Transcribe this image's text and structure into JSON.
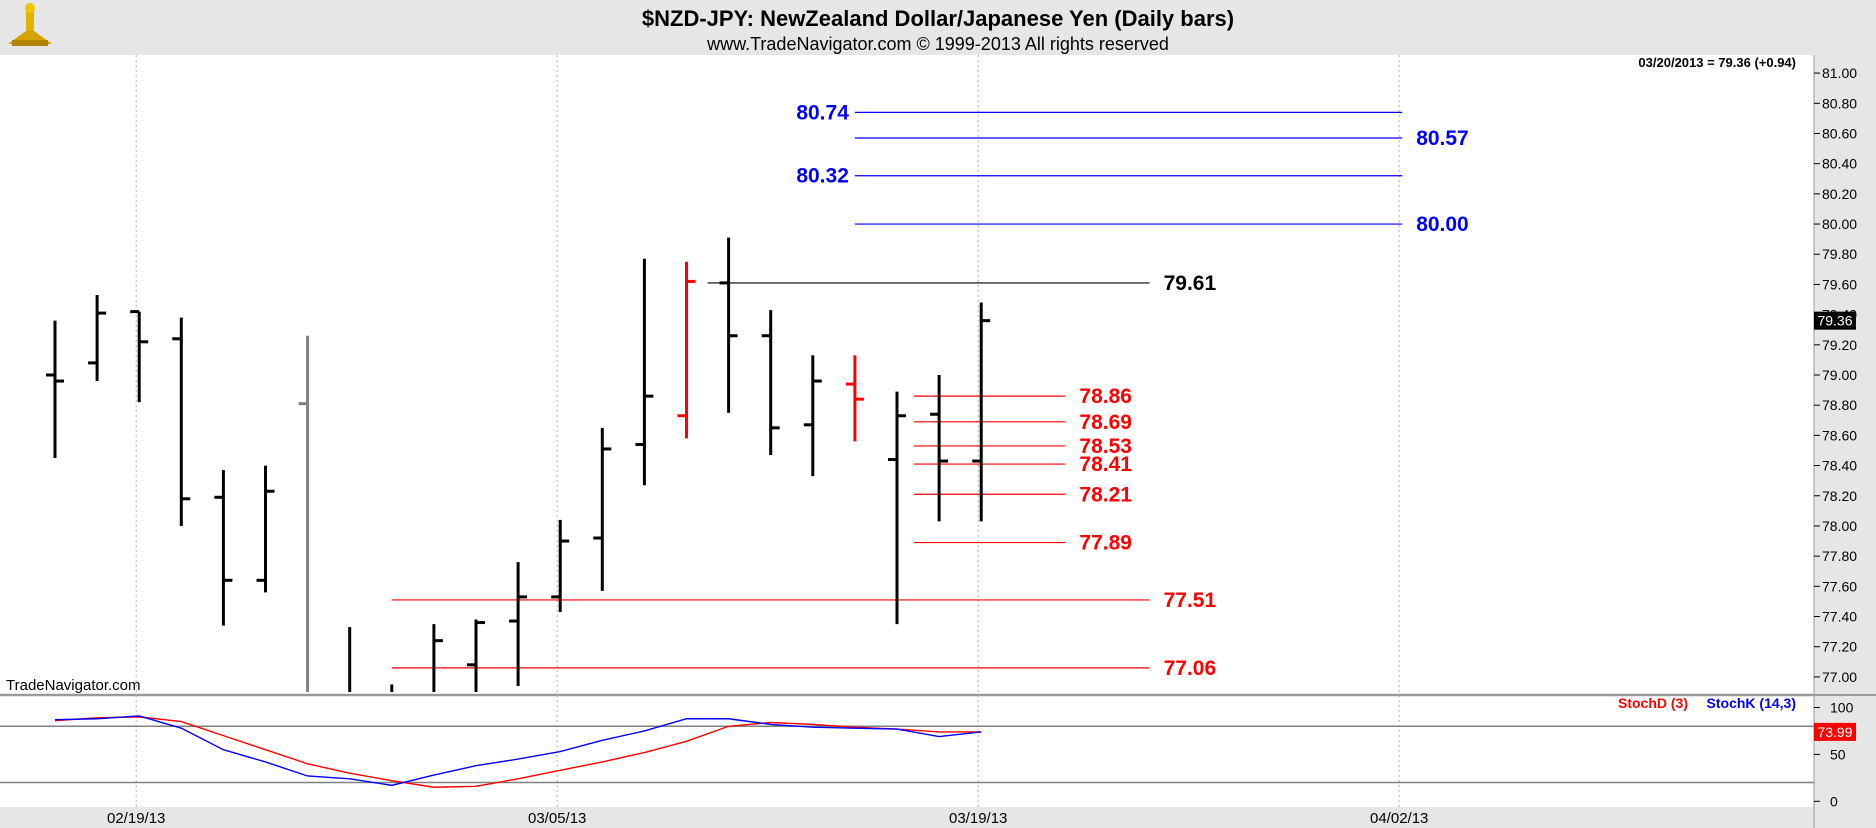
{
  "header": {
    "title": "$NZD-JPY:  NewZealand Dollar/Japanese Yen  (Daily bars)",
    "subtitle": "www.TradeNavigator.com © 1999-2013 All rights reserved",
    "last_readout": "03/20/2013 = 79.36 (+0.94)",
    "watermark": "TradeNavigator.com"
  },
  "colors": {
    "bar": "#000000",
    "bar_red": "#ff0000",
    "bar_gray": "#808080",
    "blue_level": "#0000ff",
    "red_level": "#ff0000",
    "black_level": "#000000",
    "stoch_d": "#ff0000",
    "stoch_k": "#0000ff"
  },
  "chart_data": [
    {
      "type": "ohlc",
      "ylim": [
        76.9,
        81.1
      ],
      "y_ticks": [
        "81.00",
        "80.80",
        "80.60",
        "80.40",
        "80.20",
        "80.00",
        "79.80",
        "79.60",
        "79.40",
        "79.20",
        "79.00",
        "78.80",
        "78.60",
        "78.40",
        "78.20",
        "78.00",
        "77.80",
        "77.60",
        "77.40",
        "77.20",
        "77.00"
      ],
      "y_tick_values": [
        81.0,
        80.8,
        80.6,
        80.4,
        80.2,
        80.0,
        79.8,
        79.6,
        79.4,
        79.2,
        79.0,
        78.8,
        78.6,
        78.4,
        78.2,
        78.0,
        77.8,
        77.6,
        77.4,
        77.2,
        77.0
      ],
      "x_labels": [
        "02/19/13",
        "03/05/13",
        "03/19/13",
        "04/02/13"
      ],
      "x_label_bar_index": [
        2,
        12,
        22,
        32
      ],
      "last_value_label": "79.36",
      "last_value": 79.36,
      "bars": [
        {
          "o": 79.0,
          "h": 79.36,
          "l": 78.45,
          "c": 78.96,
          "color": "bar"
        },
        {
          "o": 79.08,
          "h": 79.53,
          "l": 78.96,
          "c": 79.41,
          "color": "bar"
        },
        {
          "o": 79.42,
          "h": 79.42,
          "l": 78.82,
          "c": 79.22,
          "color": "bar"
        },
        {
          "o": 79.24,
          "h": 79.38,
          "l": 78.0,
          "c": 78.18,
          "color": "bar"
        },
        {
          "o": 78.19,
          "h": 78.37,
          "l": 77.34,
          "c": 77.64,
          "color": "bar"
        },
        {
          "o": 77.64,
          "h": 78.4,
          "l": 77.56,
          "c": 78.23,
          "color": "bar"
        },
        {
          "o": 78.81,
          "h": 79.26,
          "l": 76.9,
          "c": 76.9,
          "color": "bar_gray"
        },
        {
          "o": 76.9,
          "h": 77.33,
          "l": 76.9,
          "c": 76.9,
          "color": "bar"
        },
        {
          "o": 76.9,
          "h": 76.95,
          "l": 76.9,
          "c": 76.9,
          "color": "bar"
        },
        {
          "o": 76.9,
          "h": 77.35,
          "l": 76.9,
          "c": 77.24,
          "color": "bar"
        },
        {
          "o": 77.08,
          "h": 77.38,
          "l": 76.9,
          "c": 77.36,
          "color": "bar"
        },
        {
          "o": 77.37,
          "h": 77.76,
          "l": 76.94,
          "c": 77.53,
          "color": "bar"
        },
        {
          "o": 77.53,
          "h": 78.04,
          "l": 77.43,
          "c": 77.9,
          "color": "bar"
        },
        {
          "o": 77.92,
          "h": 78.65,
          "l": 77.57,
          "c": 78.51,
          "color": "bar"
        },
        {
          "o": 78.54,
          "h": 79.77,
          "l": 78.27,
          "c": 78.86,
          "color": "bar"
        },
        {
          "o": 78.73,
          "h": 79.75,
          "l": 78.58,
          "c": 79.62,
          "color": "bar_red"
        },
        {
          "o": 79.61,
          "h": 79.91,
          "l": 78.75,
          "c": 79.26,
          "color": "bar"
        },
        {
          "o": 79.26,
          "h": 79.43,
          "l": 78.47,
          "c": 78.65,
          "color": "bar"
        },
        {
          "o": 78.67,
          "h": 79.13,
          "l": 78.33,
          "c": 78.96,
          "color": "bar"
        },
        {
          "o": 78.94,
          "h": 79.13,
          "l": 78.56,
          "c": 78.84,
          "color": "bar_red"
        },
        {
          "o": 78.44,
          "h": 78.89,
          "l": 77.35,
          "c": 78.73,
          "color": "bar"
        },
        {
          "o": 78.74,
          "h": 79.0,
          "l": 78.03,
          "c": 78.43,
          "color": "bar"
        },
        {
          "o": 78.43,
          "h": 79.48,
          "l": 78.03,
          "c": 79.36,
          "color": "bar"
        }
      ],
      "levels": [
        {
          "value": 80.74,
          "label": "80.74",
          "color": "blue_level",
          "x0": 19,
          "x1": 32,
          "label_side": "left"
        },
        {
          "value": 80.57,
          "label": "80.57",
          "color": "blue_level",
          "x0": 19,
          "x1": 32,
          "label_side": "right"
        },
        {
          "value": 80.32,
          "label": "80.32",
          "color": "blue_level",
          "x0": 19,
          "x1": 32,
          "label_side": "left"
        },
        {
          "value": 80.0,
          "label": "80.00",
          "color": "blue_level",
          "x0": 19,
          "x1": 32,
          "label_side": "right"
        },
        {
          "value": 79.61,
          "label": "79.61",
          "color": "black_level",
          "x0": 15.5,
          "x1": 26,
          "label_side": "right"
        },
        {
          "value": 78.86,
          "label": "78.86",
          "color": "red_level",
          "x0": 20.4,
          "x1": 24,
          "label_side": "right"
        },
        {
          "value": 78.69,
          "label": "78.69",
          "color": "red_level",
          "x0": 20.4,
          "x1": 24,
          "label_side": "right"
        },
        {
          "value": 78.53,
          "label": "78.53",
          "color": "red_level",
          "x0": 20.4,
          "x1": 24,
          "label_side": "right"
        },
        {
          "value": 78.41,
          "label": "78.41",
          "color": "red_level",
          "x0": 20.4,
          "x1": 24,
          "label_side": "right"
        },
        {
          "value": 78.21,
          "label": "78.21",
          "color": "red_level",
          "x0": 20.4,
          "x1": 24,
          "label_side": "right"
        },
        {
          "value": 77.89,
          "label": "77.89",
          "color": "red_level",
          "x0": 20.4,
          "x1": 24,
          "label_side": "right"
        },
        {
          "value": 77.51,
          "label": "77.51",
          "color": "red_level",
          "x0": 8,
          "x1": 26,
          "label_side": "right"
        },
        {
          "value": 77.06,
          "label": "77.06",
          "color": "red_level",
          "x0": 8,
          "x1": 26,
          "label_side": "right"
        }
      ]
    },
    {
      "type": "line",
      "ylim": [
        -5,
        108
      ],
      "y_ticks": [
        "100",
        "50",
        "0"
      ],
      "y_tick_values": [
        100,
        50,
        0
      ],
      "hlines": [
        80,
        20
      ],
      "legend": [
        "StochD (3)",
        "StochK (14,3)"
      ],
      "last_value_label": "73.99",
      "last_value": 73.99,
      "series": [
        {
          "name": "StochD (3)",
          "color": "stoch_d",
          "values": [
            86,
            89,
            90,
            85,
            70,
            55,
            40,
            30,
            22,
            15,
            16,
            24,
            33,
            42,
            52,
            64,
            80,
            84,
            82,
            79,
            77,
            74,
            74
          ]
        },
        {
          "name": "StochK (14,3)",
          "color": "stoch_k",
          "values": [
            87,
            88,
            91,
            78,
            55,
            42,
            27,
            24,
            17,
            28,
            38,
            45,
            53,
            65,
            75,
            88,
            88,
            82,
            79,
            78,
            77,
            69,
            74
          ]
        }
      ]
    }
  ]
}
